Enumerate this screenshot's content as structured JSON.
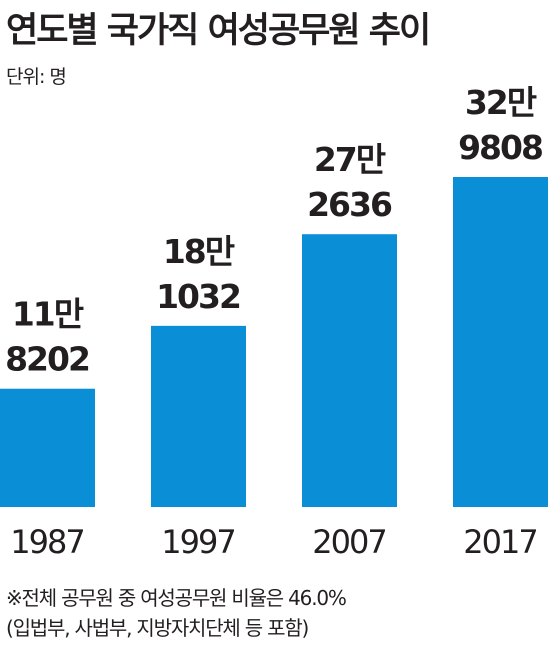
{
  "title": "연도별 국가직 여성공무원 추이",
  "unit_label": "단위: 명",
  "chart_data": {
    "type": "bar",
    "categories": [
      "1987",
      "1997",
      "2007",
      "2017"
    ],
    "values": [
      118202,
      181032,
      272636,
      329808
    ],
    "value_labels": [
      [
        "11만",
        "8202"
      ],
      [
        "18만",
        "1032"
      ],
      [
        "27만",
        "2636"
      ],
      [
        "32만",
        "9808"
      ]
    ],
    "title": "연도별 국가직 여성공무원 추이",
    "xlabel": "",
    "ylabel": "",
    "ylim": [
      0,
      329808
    ],
    "grid": false,
    "legend": "none",
    "bar_color": "#0a8fd7"
  },
  "footnote": {
    "line1": "※전체 공무원 중 여성공무원 비율은 46.0%",
    "line2": "(입법부, 사법부, 지방자치단체 등 포함)"
  }
}
